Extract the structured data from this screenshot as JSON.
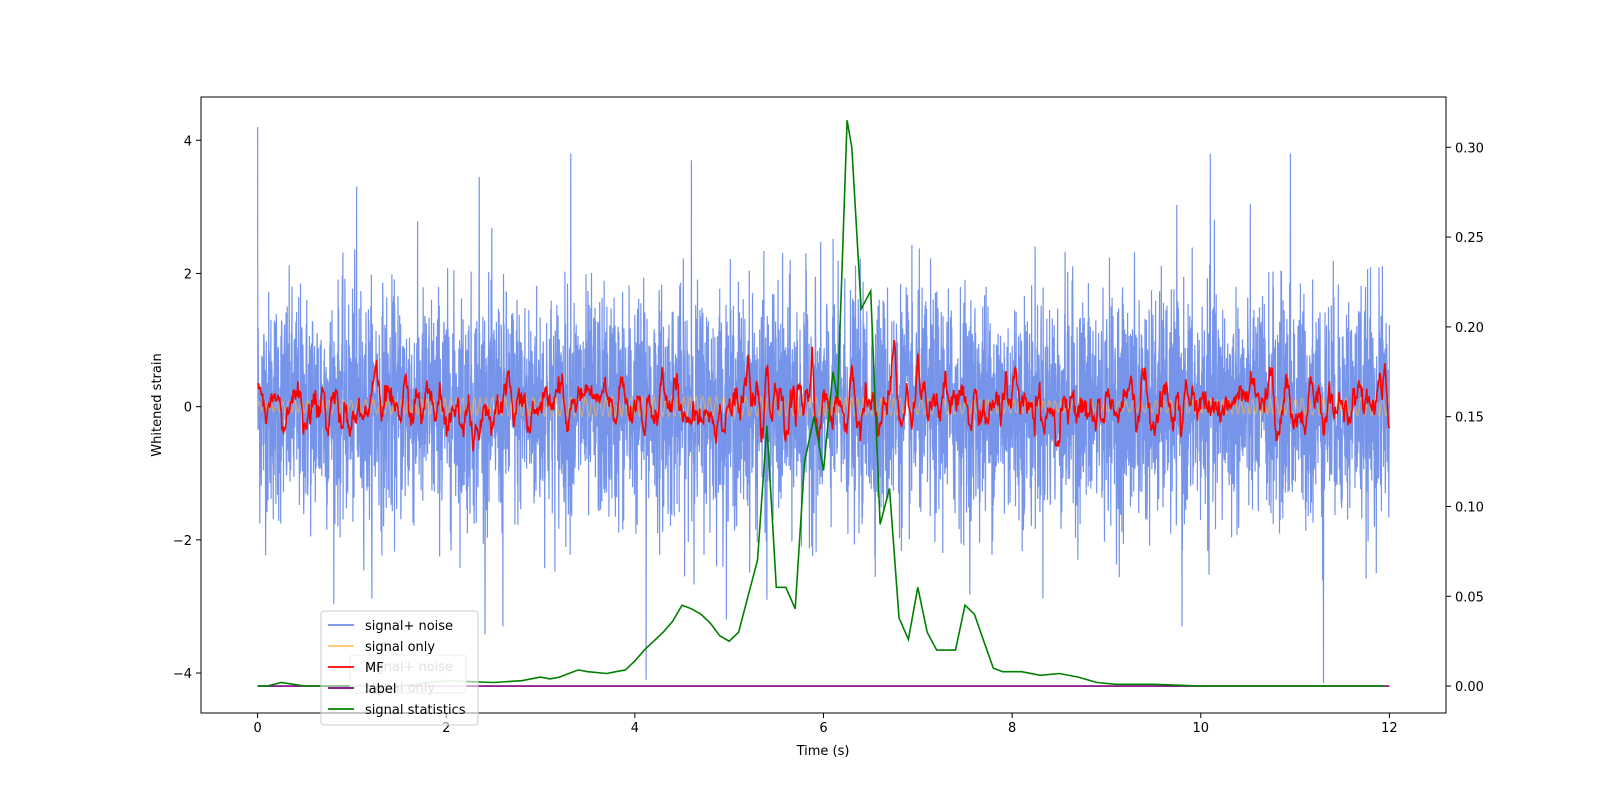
{
  "chart_data": {
    "type": "line",
    "title": "",
    "xlabel": "Time (s)",
    "ylabel": "Whitened strain",
    "ylabel_right": "",
    "xlim": [
      -0.6,
      12.6
    ],
    "ylim": [
      -4.6,
      4.65
    ],
    "ylim_right": [
      -0.015,
      0.328
    ],
    "x_ticks": [
      0,
      2,
      4,
      6,
      8,
      10,
      12
    ],
    "y_ticks": [
      -4,
      -2,
      0,
      2,
      4
    ],
    "y_ticks_right": [
      0.0,
      0.05,
      0.1,
      0.15,
      0.2,
      0.25,
      0.3
    ],
    "y_tick_labels_right": [
      "0.00",
      "0.05",
      "0.10",
      "0.15",
      "0.20",
      "0.25",
      "0.30"
    ],
    "grid": false,
    "legend_position": "lower-left",
    "colors": {
      "signal_noise": "#6f8ee8",
      "signal_only": "#ffb84d",
      "mf": "#ff0000",
      "label": "#800080",
      "signal_statistics": "#008000"
    },
    "legend": [
      {
        "name": "signal+ noise",
        "color": "#6f8ee8"
      },
      {
        "name": "signal only",
        "color": "#ffc266"
      },
      {
        "name": "MF",
        "color": "#ff0000"
      },
      {
        "name": "label",
        "color": "#800080"
      },
      {
        "name": "signal statistics",
        "color": "#008000"
      }
    ],
    "legend_ghost": [
      {
        "name": "signal+ noise"
      },
      {
        "name": "signal only"
      }
    ],
    "series": [
      {
        "name": "signal+ noise",
        "axis": "left",
        "noise_band_std": 0.85,
        "x_range": [
          0,
          12
        ],
        "notable_spikes": [
          {
            "x": 0.0,
            "y": 4.2
          },
          {
            "x": 4.12,
            "y": -4.1
          },
          {
            "x": 11.3,
            "y": -4.15
          },
          {
            "x": 3.32,
            "y": 3.8
          },
          {
            "x": 2.35,
            "y": 3.45
          },
          {
            "x": 4.6,
            "y": 3.7
          },
          {
            "x": 10.1,
            "y": 3.8
          },
          {
            "x": 10.95,
            "y": 3.8
          },
          {
            "x": 1.05,
            "y": 3.3
          },
          {
            "x": 5.4,
            "y": -2.9
          },
          {
            "x": 2.6,
            "y": -3.3
          },
          {
            "x": 9.8,
            "y": -3.3
          }
        ]
      },
      {
        "name": "signal only",
        "axis": "left",
        "amplitude": 0.15,
        "x_range": [
          0,
          12
        ]
      },
      {
        "name": "MF",
        "axis": "left",
        "amplitude": 0.3,
        "x_range": [
          0,
          12
        ],
        "notable_peaks": [
          {
            "x": 5.2,
            "y": 0.78
          },
          {
            "x": 5.88,
            "y": 0.9
          },
          {
            "x": 6.75,
            "y": 1.0
          },
          {
            "x": 7.0,
            "y": 0.8
          },
          {
            "x": 11.95,
            "y": 0.65
          },
          {
            "x": 0.0,
            "y": 0.35
          }
        ]
      },
      {
        "name": "label",
        "axis": "right",
        "x": [
          0,
          12
        ],
        "y": [
          0.0,
          0.0
        ]
      },
      {
        "name": "signal statistics",
        "axis": "right",
        "x": [
          0,
          0.1,
          0.25,
          0.5,
          1,
          1.5,
          2,
          2.5,
          2.8,
          3,
          3.1,
          3.2,
          3.3,
          3.4,
          3.5,
          3.7,
          3.8,
          3.9,
          4,
          4.1,
          4.2,
          4.3,
          4.4,
          4.5,
          4.6,
          4.7,
          4.8,
          4.9,
          5,
          5.1,
          5.2,
          5.3,
          5.4,
          5.5,
          5.6,
          5.7,
          5.8,
          5.9,
          6,
          6.1,
          6.15,
          6.25,
          6.3,
          6.4,
          6.5,
          6.6,
          6.7,
          6.8,
          6.9,
          7.0,
          7.1,
          7.2,
          7.3,
          7.4,
          7.5,
          7.6,
          7.7,
          7.8,
          7.9,
          8.1,
          8.3,
          8.5,
          8.7,
          8.9,
          9.1,
          9.5,
          10,
          10.5,
          11,
          11.5,
          11.95
        ],
        "y": [
          0.0,
          0.0,
          0.002,
          0.0,
          0.0,
          0.0,
          0.003,
          0.002,
          0.003,
          0.005,
          0.004,
          0.005,
          0.007,
          0.009,
          0.008,
          0.007,
          0.008,
          0.009,
          0.014,
          0.02,
          0.025,
          0.03,
          0.036,
          0.045,
          0.043,
          0.04,
          0.035,
          0.028,
          0.025,
          0.03,
          0.05,
          0.07,
          0.145,
          0.055,
          0.055,
          0.043,
          0.125,
          0.15,
          0.12,
          0.175,
          0.16,
          0.315,
          0.3,
          0.21,
          0.22,
          0.09,
          0.11,
          0.038,
          0.026,
          0.055,
          0.03,
          0.02,
          0.02,
          0.02,
          0.045,
          0.04,
          0.025,
          0.01,
          0.008,
          0.008,
          0.006,
          0.007,
          0.005,
          0.002,
          0.001,
          0.001,
          0.0,
          0.0,
          0.0,
          0.0,
          0.0
        ]
      }
    ]
  }
}
